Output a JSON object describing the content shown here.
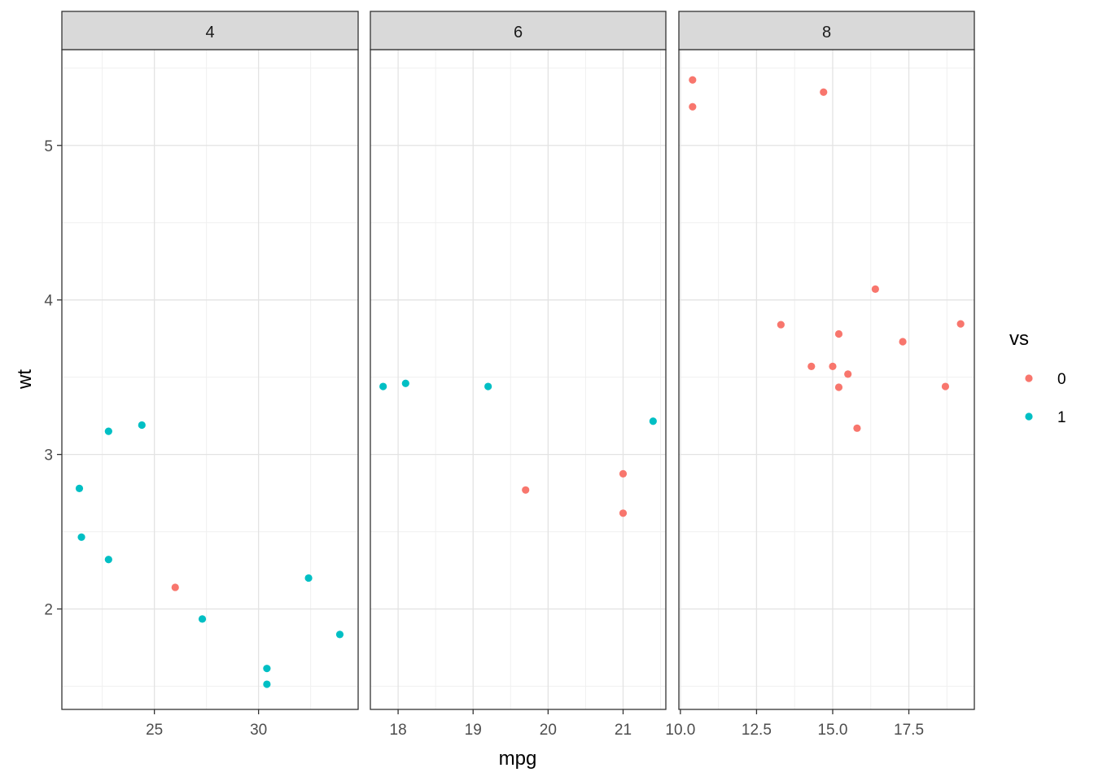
{
  "chart_data": {
    "type": "scatter",
    "xlabel": "mpg",
    "ylabel": "wt",
    "ylim": [
      1.35,
      5.62
    ],
    "yticks": [
      2,
      3,
      4,
      5
    ],
    "ytick_labels": [
      "2",
      "3",
      "4",
      "5"
    ],
    "grid": true,
    "legend": {
      "title": "vs",
      "placement": "right",
      "entries": [
        {
          "label": "0",
          "color": "#F8766D"
        },
        {
          "label": "1",
          "color": "#00BFC4"
        }
      ]
    },
    "series_colors": {
      "0": "#F8766D",
      "1": "#00BFC4"
    },
    "facets": [
      {
        "label": "4",
        "xlim": [
          20.56,
          34.78
        ],
        "xticks": [
          25,
          30
        ],
        "xtick_labels": [
          "25",
          "30"
        ],
        "points": [
          {
            "x": 22.8,
            "y": 2.32,
            "vs": "1"
          },
          {
            "x": 24.4,
            "y": 3.19,
            "vs": "1"
          },
          {
            "x": 22.8,
            "y": 3.15,
            "vs": "1"
          },
          {
            "x": 32.4,
            "y": 2.2,
            "vs": "1"
          },
          {
            "x": 30.4,
            "y": 1.615,
            "vs": "1"
          },
          {
            "x": 33.9,
            "y": 1.835,
            "vs": "1"
          },
          {
            "x": 21.5,
            "y": 2.465,
            "vs": "1"
          },
          {
            "x": 27.3,
            "y": 1.935,
            "vs": "1"
          },
          {
            "x": 26.0,
            "y": 2.14,
            "vs": "0"
          },
          {
            "x": 30.4,
            "y": 1.513,
            "vs": "1"
          },
          {
            "x": 21.4,
            "y": 2.78,
            "vs": "1"
          }
        ]
      },
      {
        "label": "6",
        "xlim": [
          17.63,
          21.57
        ],
        "xticks": [
          18,
          19,
          20,
          21
        ],
        "xtick_labels": [
          "18",
          "19",
          "20",
          "21"
        ],
        "points": [
          {
            "x": 21.0,
            "y": 2.62,
            "vs": "0"
          },
          {
            "x": 21.0,
            "y": 2.875,
            "vs": "0"
          },
          {
            "x": 21.4,
            "y": 3.215,
            "vs": "1"
          },
          {
            "x": 18.1,
            "y": 3.46,
            "vs": "1"
          },
          {
            "x": 19.2,
            "y": 3.44,
            "vs": "1"
          },
          {
            "x": 17.8,
            "y": 3.44,
            "vs": "1"
          },
          {
            "x": 19.7,
            "y": 2.77,
            "vs": "0"
          }
        ]
      },
      {
        "label": "8",
        "xlim": [
          9.95,
          19.65
        ],
        "xticks": [
          10.0,
          12.5,
          15.0,
          17.5
        ],
        "xtick_labels": [
          "10.0",
          "12.5",
          "15.0",
          "17.5"
        ],
        "points": [
          {
            "x": 18.7,
            "y": 3.44,
            "vs": "0"
          },
          {
            "x": 14.3,
            "y": 3.57,
            "vs": "0"
          },
          {
            "x": 16.4,
            "y": 4.07,
            "vs": "0"
          },
          {
            "x": 17.3,
            "y": 3.73,
            "vs": "0"
          },
          {
            "x": 15.2,
            "y": 3.78,
            "vs": "0"
          },
          {
            "x": 10.4,
            "y": 5.25,
            "vs": "0"
          },
          {
            "x": 10.4,
            "y": 5.424,
            "vs": "0"
          },
          {
            "x": 14.7,
            "y": 5.345,
            "vs": "0"
          },
          {
            "x": 15.5,
            "y": 3.52,
            "vs": "0"
          },
          {
            "x": 15.2,
            "y": 3.435,
            "vs": "0"
          },
          {
            "x": 13.3,
            "y": 3.84,
            "vs": "0"
          },
          {
            "x": 19.2,
            "y": 3.845,
            "vs": "0"
          },
          {
            "x": 15.8,
            "y": 3.17,
            "vs": "0"
          },
          {
            "x": 15.0,
            "y": 3.57,
            "vs": "0"
          }
        ]
      }
    ]
  }
}
